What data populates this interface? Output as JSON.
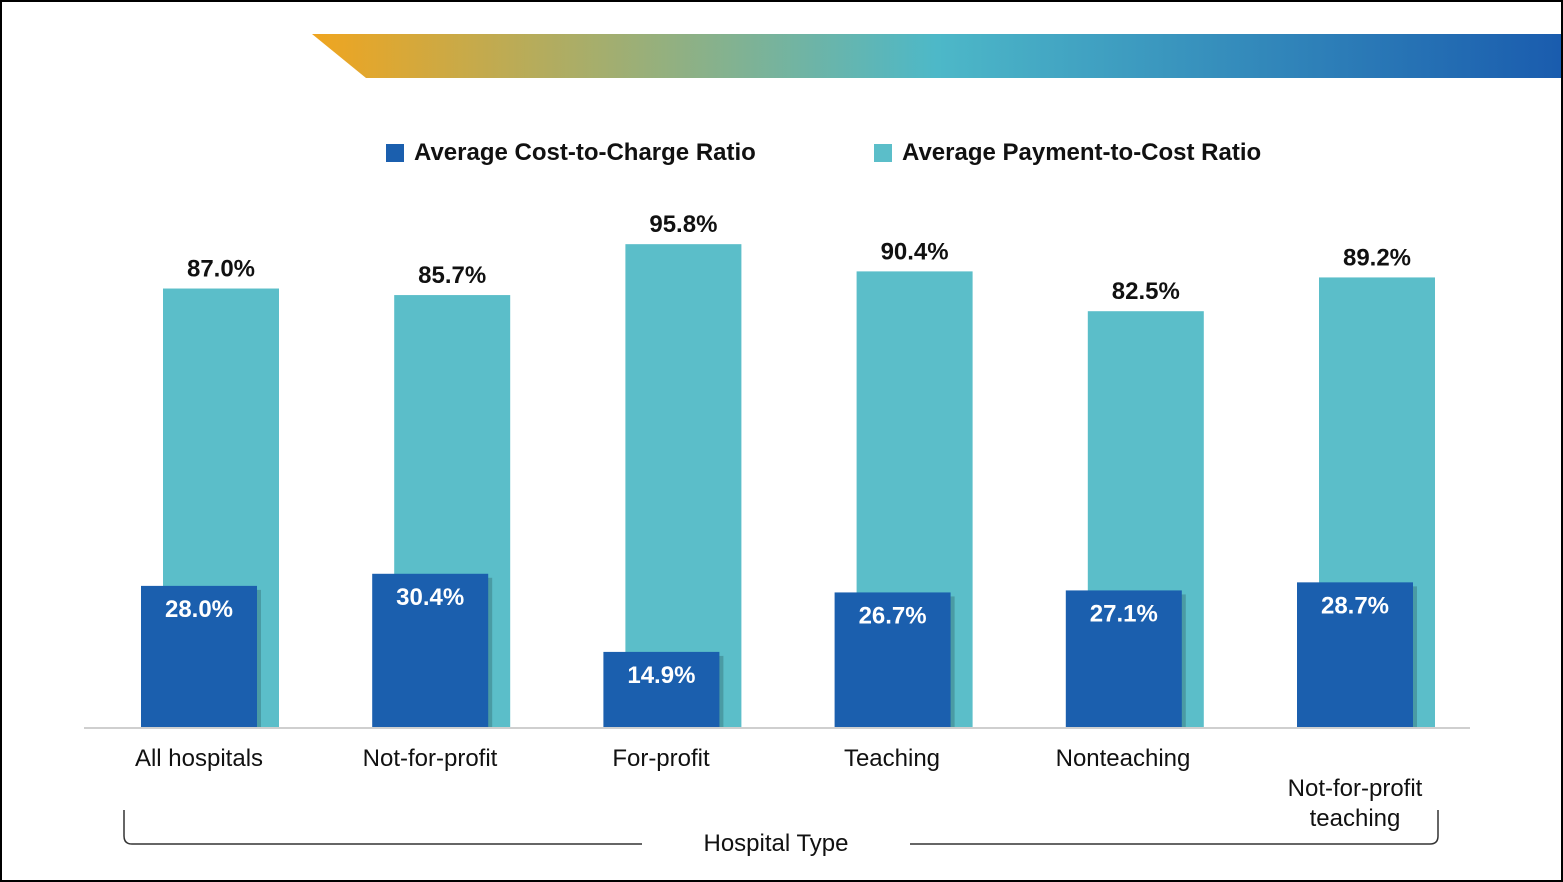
{
  "chart_data": {
    "type": "bar",
    "categories": [
      "All hospitals",
      "Not-for-profit",
      "For-profit",
      "Teaching",
      "Nonteaching",
      "Not-for-profit teaching"
    ],
    "series": [
      {
        "name": "Average Cost-to-Charge Ratio",
        "values": [
          28.0,
          30.4,
          14.9,
          26.7,
          27.1,
          28.7
        ],
        "labels": [
          "28.0%",
          "30.4%",
          "14.9%",
          "26.7%",
          "27.1%",
          "28.7%"
        ],
        "color": "#1b5fae"
      },
      {
        "name": "Average Payment-to-Cost Ratio",
        "values": [
          87.0,
          85.7,
          95.8,
          90.4,
          82.5,
          89.2
        ],
        "labels": [
          "87.0%",
          "85.7%",
          "95.8%",
          "90.4%",
          "82.5%",
          "89.2%"
        ],
        "color": "#5bbec9"
      }
    ],
    "xlabel": "Hospital Type",
    "ylabel": "",
    "ylim": [
      0,
      100
    ],
    "legend_position": "top",
    "grid": false
  },
  "banner": {
    "gradient_colors": [
      "#f0a51f",
      "#4db8c8",
      "#1a5cae"
    ]
  },
  "legend": {
    "items": [
      {
        "label": "Average Cost-to-Charge Ratio",
        "color": "#1b5fae"
      },
      {
        "label": "Average Payment-to-Cost Ratio",
        "color": "#5bbec9"
      }
    ]
  }
}
